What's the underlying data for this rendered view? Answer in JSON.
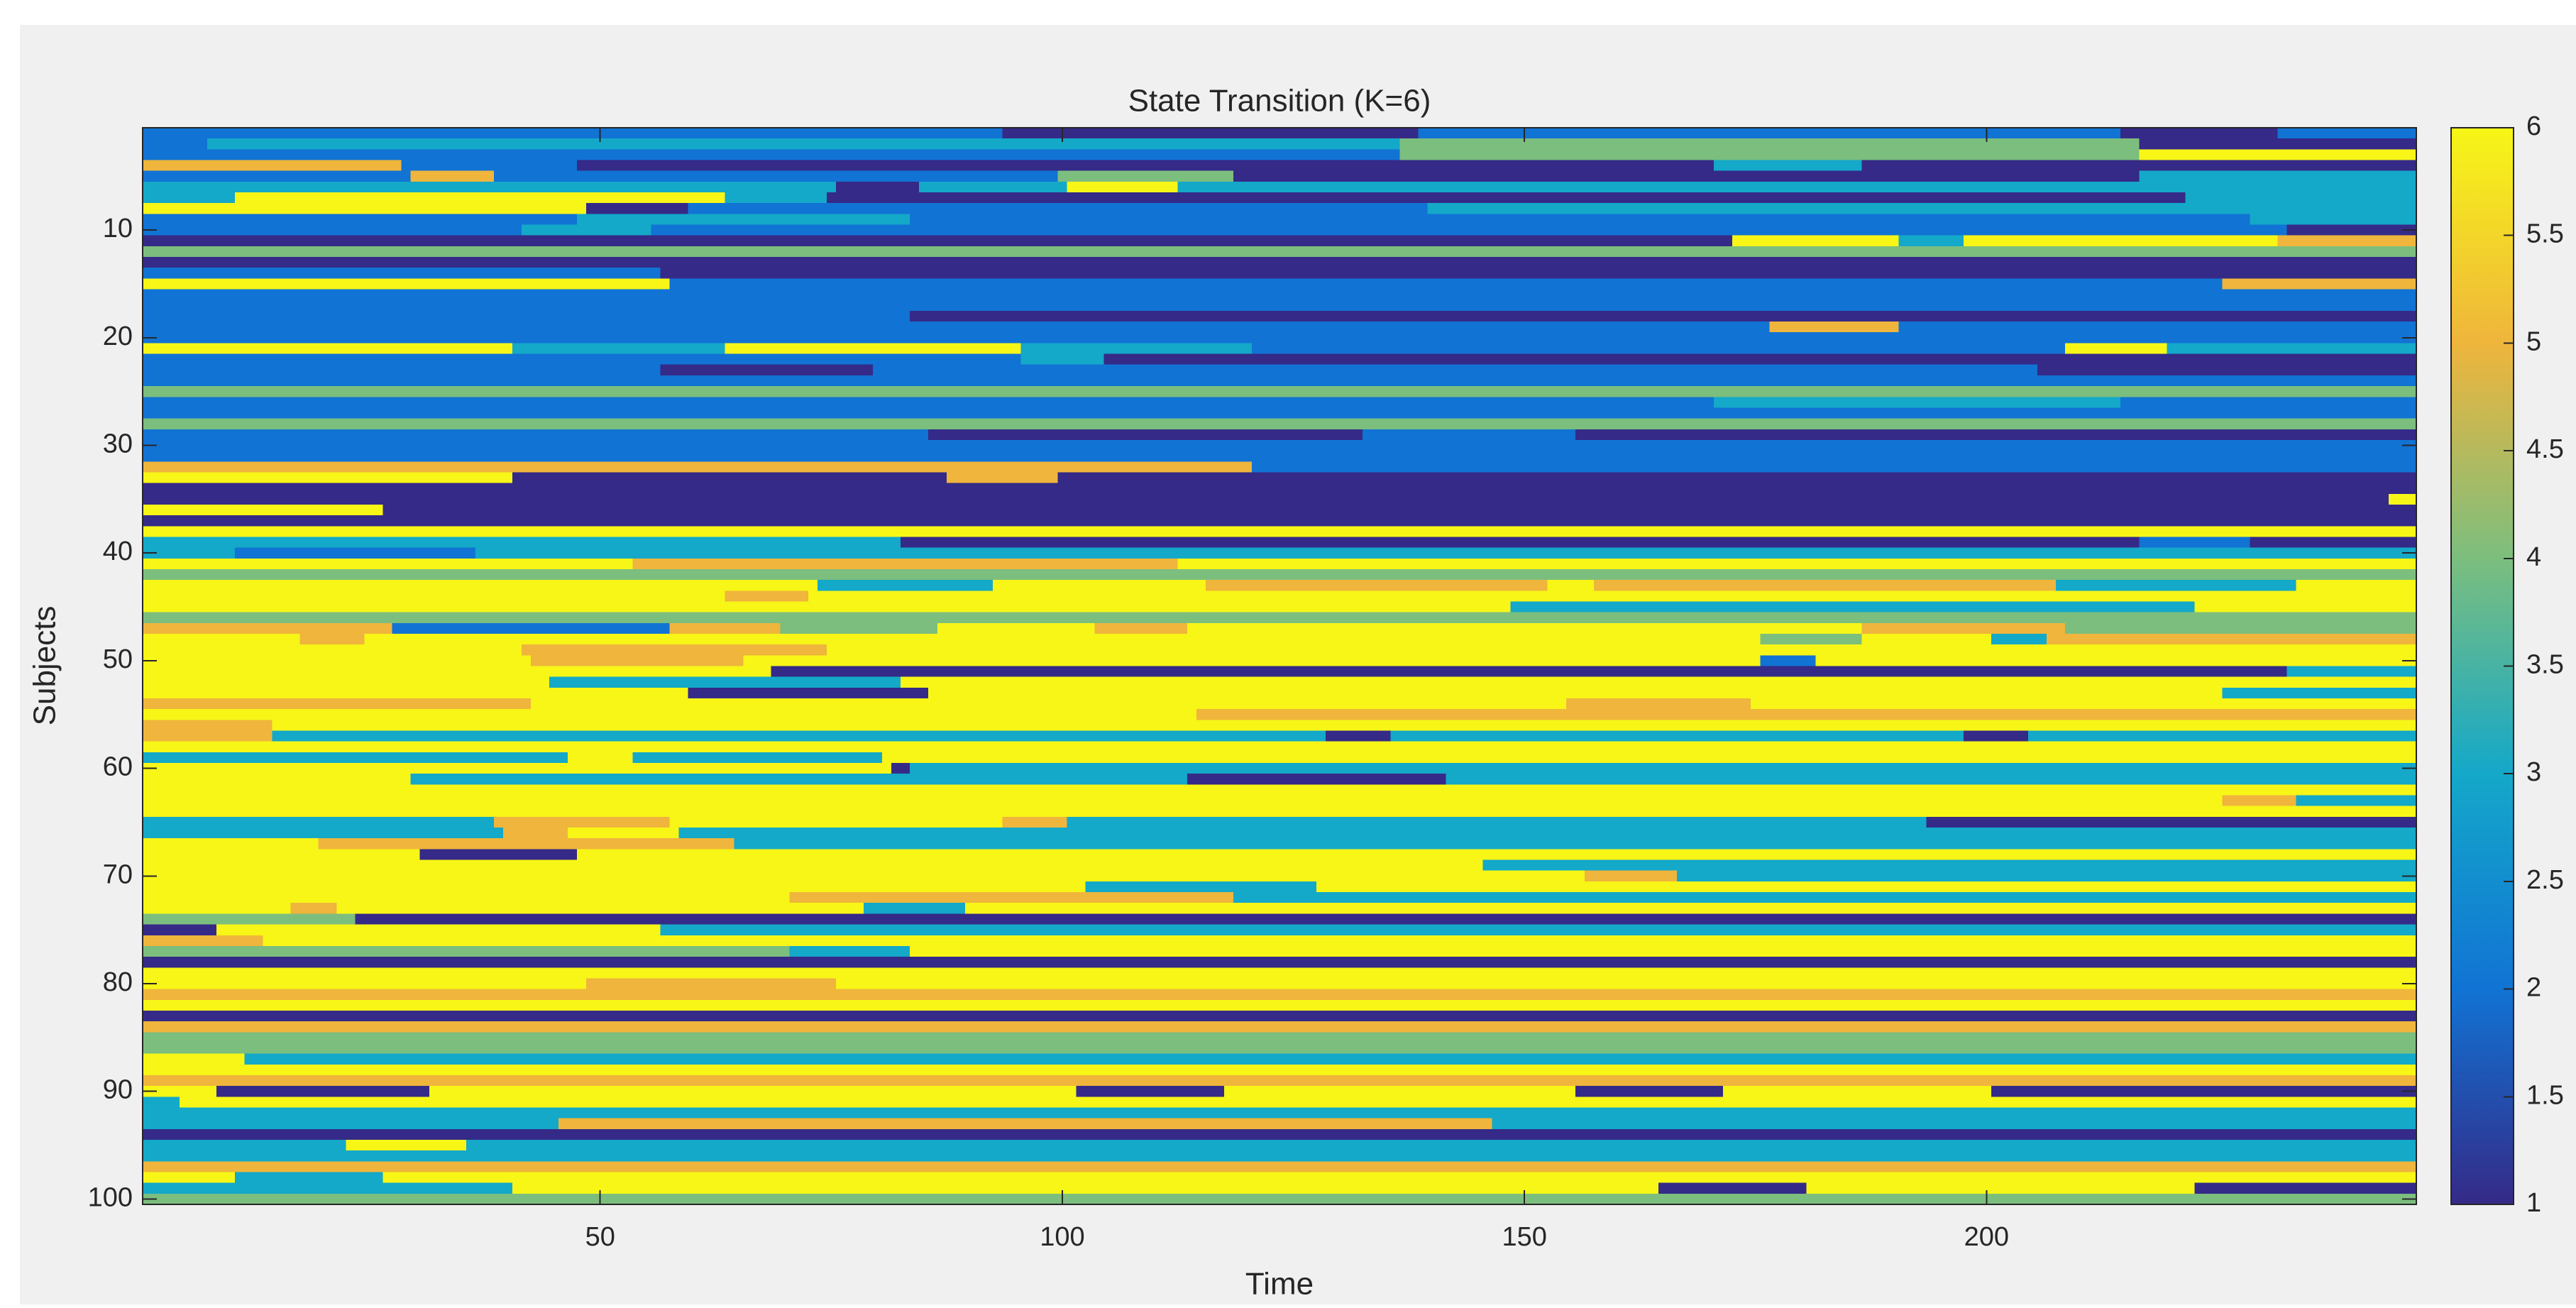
{
  "chart_data": {
    "type": "heatmap",
    "title": "State Transition (K=6)",
    "xlabel": "Time",
    "ylabel": "Subjects",
    "xlim": [
      0.5,
      246.5
    ],
    "ylim": [
      0.5,
      100.5
    ],
    "y_reversed": true,
    "xticks": [
      50,
      100,
      150,
      200
    ],
    "yticks": [
      10,
      20,
      30,
      40,
      50,
      60,
      70,
      80,
      90,
      100
    ],
    "clim": [
      1,
      6
    ],
    "cticks": [
      1,
      1.5,
      2,
      2.5,
      3,
      3.5,
      4,
      4.5,
      5,
      5.5,
      6
    ],
    "colormap": [
      "#352a87",
      "#1173d4",
      "#14a8c9",
      "#7cbe7e",
      "#efb53c",
      "#f7f617"
    ],
    "rows": [
      [
        [
          1,
          93,
          2
        ],
        [
          94,
          138,
          1
        ],
        [
          139,
          214,
          2
        ],
        [
          215,
          231,
          1
        ],
        [
          232,
          246,
          2
        ]
      ],
      [
        [
          1,
          7,
          2
        ],
        [
          8,
          136,
          3
        ],
        [
          137,
          216,
          4
        ],
        [
          217,
          246,
          1
        ]
      ],
      [
        [
          1,
          136,
          2
        ],
        [
          137,
          216,
          4
        ],
        [
          217,
          246,
          6
        ]
      ],
      [
        [
          1,
          28,
          5
        ],
        [
          29,
          47,
          2
        ],
        [
          48,
          170,
          1
        ],
        [
          171,
          186,
          3
        ],
        [
          187,
          246,
          1
        ]
      ],
      [
        [
          1,
          29,
          2
        ],
        [
          30,
          38,
          5
        ],
        [
          39,
          99,
          2
        ],
        [
          100,
          118,
          4
        ],
        [
          119,
          216,
          1
        ],
        [
          217,
          246,
          3
        ]
      ],
      [
        [
          1,
          75,
          3
        ],
        [
          76,
          84,
          1
        ],
        [
          85,
          100,
          3
        ],
        [
          101,
          112,
          6
        ],
        [
          113,
          246,
          3
        ]
      ],
      [
        [
          1,
          10,
          3
        ],
        [
          11,
          63,
          6
        ],
        [
          64,
          74,
          3
        ],
        [
          75,
          221,
          1
        ],
        [
          222,
          246,
          3
        ]
      ],
      [
        [
          1,
          48,
          6
        ],
        [
          49,
          59,
          1
        ],
        [
          60,
          139,
          2
        ],
        [
          140,
          246,
          3
        ]
      ],
      [
        [
          1,
          47,
          2
        ],
        [
          48,
          83,
          3
        ],
        [
          84,
          228,
          2
        ],
        [
          229,
          246,
          3
        ]
      ],
      [
        [
          1,
          41,
          2
        ],
        [
          42,
          55,
          3
        ],
        [
          56,
          232,
          2
        ],
        [
          233,
          246,
          1
        ]
      ],
      [
        [
          1,
          172,
          1
        ],
        [
          173,
          190,
          6
        ],
        [
          191,
          197,
          3
        ],
        [
          198,
          231,
          6
        ],
        [
          232,
          246,
          5
        ]
      ],
      [
        [
          1,
          246,
          4
        ]
      ],
      [
        [
          1,
          246,
          1
        ]
      ],
      [
        [
          1,
          56,
          2
        ],
        [
          57,
          246,
          1
        ]
      ],
      [
        [
          1,
          57,
          6
        ],
        [
          58,
          225,
          2
        ],
        [
          226,
          246,
          5
        ]
      ],
      [
        [
          1,
          246,
          2
        ]
      ],
      [
        [
          1,
          246,
          2
        ]
      ],
      [
        [
          1,
          83,
          2
        ],
        [
          84,
          246,
          1
        ]
      ],
      [
        [
          1,
          176,
          2
        ],
        [
          177,
          190,
          5
        ],
        [
          191,
          246,
          2
        ]
      ],
      [
        [
          1,
          246,
          2
        ]
      ],
      [
        [
          1,
          40,
          6
        ],
        [
          41,
          63,
          3
        ],
        [
          64,
          95,
          6
        ],
        [
          96,
          120,
          3
        ],
        [
          121,
          208,
          2
        ],
        [
          209,
          219,
          6
        ],
        [
          220,
          246,
          3
        ]
      ],
      [
        [
          1,
          95,
          2
        ],
        [
          96,
          104,
          3
        ],
        [
          105,
          246,
          1
        ]
      ],
      [
        [
          1,
          56,
          2
        ],
        [
          57,
          79,
          1
        ],
        [
          80,
          205,
          2
        ],
        [
          206,
          246,
          1
        ]
      ],
      [
        [
          1,
          246,
          2
        ]
      ],
      [
        [
          1,
          246,
          4
        ]
      ],
      [
        [
          1,
          170,
          2
        ],
        [
          171,
          214,
          3
        ],
        [
          215,
          246,
          2
        ]
      ],
      [
        [
          1,
          246,
          2
        ]
      ],
      [
        [
          1,
          246,
          4
        ]
      ],
      [
        [
          1,
          85,
          2
        ],
        [
          86,
          132,
          1
        ],
        [
          133,
          155,
          2
        ],
        [
          156,
          246,
          1
        ]
      ],
      [
        [
          1,
          246,
          2
        ]
      ],
      [
        [
          1,
          246,
          2
        ]
      ],
      [
        [
          1,
          120,
          5
        ],
        [
          121,
          246,
          2
        ]
      ],
      [
        [
          1,
          40,
          6
        ],
        [
          41,
          87,
          1
        ],
        [
          88,
          99,
          5
        ],
        [
          100,
          246,
          1
        ]
      ],
      [
        [
          1,
          246,
          1
        ]
      ],
      [
        [
          1,
          243,
          1
        ],
        [
          244,
          246,
          6
        ]
      ],
      [
        [
          1,
          26,
          6
        ],
        [
          27,
          246,
          1
        ]
      ],
      [
        [
          1,
          246,
          1
        ]
      ],
      [
        [
          1,
          246,
          6
        ]
      ],
      [
        [
          1,
          82,
          3
        ],
        [
          83,
          216,
          1
        ],
        [
          217,
          228,
          2
        ],
        [
          229,
          246,
          1
        ]
      ],
      [
        [
          1,
          10,
          3
        ],
        [
          11,
          36,
          2
        ],
        [
          37,
          246,
          3
        ]
      ],
      [
        [
          1,
          53,
          6
        ],
        [
          54,
          112,
          5
        ],
        [
          113,
          246,
          6
        ]
      ],
      [
        [
          1,
          246,
          4
        ]
      ],
      [
        [
          1,
          73,
          6
        ],
        [
          74,
          92,
          3
        ],
        [
          93,
          115,
          6
        ],
        [
          116,
          152,
          5
        ],
        [
          153,
          157,
          6
        ],
        [
          158,
          207,
          5
        ],
        [
          208,
          233,
          3
        ],
        [
          234,
          246,
          6
        ]
      ],
      [
        [
          1,
          63,
          6
        ],
        [
          64,
          72,
          5
        ],
        [
          73,
          246,
          6
        ]
      ],
      [
        [
          1,
          148,
          6
        ],
        [
          149,
          222,
          3
        ],
        [
          223,
          246,
          6
        ]
      ],
      [
        [
          1,
          246,
          4
        ]
      ],
      [
        [
          1,
          27,
          5
        ],
        [
          28,
          57,
          2
        ],
        [
          58,
          69,
          5
        ],
        [
          70,
          86,
          4
        ],
        [
          87,
          103,
          6
        ],
        [
          104,
          113,
          5
        ],
        [
          114,
          186,
          6
        ],
        [
          187,
          208,
          5
        ],
        [
          209,
          246,
          4
        ]
      ],
      [
        [
          1,
          17,
          6
        ],
        [
          18,
          24,
          5
        ],
        [
          25,
          175,
          6
        ],
        [
          176,
          186,
          4
        ],
        [
          187,
          200,
          6
        ],
        [
          201,
          206,
          3
        ],
        [
          207,
          246,
          5
        ]
      ],
      [
        [
          1,
          41,
          6
        ],
        [
          42,
          74,
          5
        ],
        [
          75,
          246,
          6
        ]
      ],
      [
        [
          1,
          42,
          6
        ],
        [
          43,
          65,
          5
        ],
        [
          66,
          175,
          6
        ],
        [
          176,
          181,
          2
        ],
        [
          182,
          246,
          6
        ]
      ],
      [
        [
          1,
          68,
          6
        ],
        [
          69,
          232,
          1
        ],
        [
          233,
          246,
          3
        ]
      ],
      [
        [
          1,
          44,
          6
        ],
        [
          45,
          82,
          3
        ],
        [
          83,
          246,
          6
        ]
      ],
      [
        [
          1,
          59,
          6
        ],
        [
          60,
          85,
          1
        ],
        [
          86,
          225,
          6
        ],
        [
          226,
          246,
          3
        ]
      ],
      [
        [
          1,
          42,
          5
        ],
        [
          43,
          154,
          6
        ],
        [
          155,
          174,
          5
        ],
        [
          175,
          246,
          6
        ]
      ],
      [
        [
          1,
          114,
          6
        ],
        [
          115,
          118,
          5
        ],
        [
          119,
          246,
          5
        ]
      ],
      [
        [
          1,
          14,
          5
        ],
        [
          15,
          246,
          6
        ]
      ],
      [
        [
          1,
          14,
          5
        ],
        [
          15,
          128,
          3
        ],
        [
          129,
          135,
          1
        ],
        [
          136,
          197,
          3
        ],
        [
          198,
          204,
          1
        ],
        [
          205,
          246,
          3
        ]
      ],
      [
        [
          1,
          246,
          6
        ]
      ],
      [
        [
          1,
          46,
          3
        ],
        [
          47,
          53,
          6
        ],
        [
          54,
          80,
          3
        ],
        [
          81,
          246,
          6
        ]
      ],
      [
        [
          1,
          81,
          6
        ],
        [
          82,
          83,
          1
        ],
        [
          84,
          246,
          3
        ]
      ],
      [
        [
          1,
          29,
          6
        ],
        [
          30,
          113,
          3
        ],
        [
          114,
          141,
          1
        ],
        [
          142,
          246,
          3
        ]
      ],
      [
        [
          1,
          246,
          6
        ]
      ],
      [
        [
          1,
          225,
          6
        ],
        [
          226,
          233,
          5
        ],
        [
          234,
          246,
          3
        ]
      ],
      [
        [
          1,
          246,
          6
        ]
      ],
      [
        [
          1,
          38,
          3
        ],
        [
          39,
          57,
          5
        ],
        [
          58,
          93,
          6
        ],
        [
          94,
          100,
          5
        ],
        [
          101,
          193,
          3
        ],
        [
          194,
          246,
          1
        ]
      ],
      [
        [
          1,
          39,
          3
        ],
        [
          40,
          46,
          5
        ],
        [
          47,
          58,
          6
        ],
        [
          59,
          246,
          3
        ]
      ],
      [
        [
          1,
          19,
          6
        ],
        [
          20,
          64,
          5
        ],
        [
          65,
          246,
          3
        ]
      ],
      [
        [
          1,
          30,
          6
        ],
        [
          31,
          47,
          1
        ],
        [
          48,
          246,
          6
        ]
      ],
      [
        [
          1,
          145,
          6
        ],
        [
          146,
          246,
          3
        ]
      ],
      [
        [
          1,
          156,
          6
        ],
        [
          157,
          166,
          5
        ],
        [
          167,
          246,
          3
        ]
      ],
      [
        [
          1,
          102,
          6
        ],
        [
          103,
          127,
          3
        ],
        [
          128,
          246,
          6
        ]
      ],
      [
        [
          1,
          70,
          6
        ],
        [
          71,
          118,
          5
        ],
        [
          119,
          246,
          3
        ]
      ],
      [
        [
          1,
          16,
          6
        ],
        [
          17,
          21,
          5
        ],
        [
          22,
          78,
          6
        ],
        [
          79,
          89,
          3
        ],
        [
          90,
          246,
          6
        ]
      ],
      [
        [
          1,
          23,
          4
        ],
        [
          24,
          246,
          1
        ]
      ],
      [
        [
          1,
          8,
          1
        ],
        [
          9,
          56,
          6
        ],
        [
          57,
          246,
          3
        ]
      ],
      [
        [
          1,
          13,
          5
        ],
        [
          14,
          246,
          6
        ]
      ],
      [
        [
          1,
          70,
          4
        ],
        [
          71,
          83,
          3
        ],
        [
          84,
          246,
          6
        ]
      ],
      [
        [
          1,
          246,
          1
        ]
      ],
      [
        [
          1,
          246,
          6
        ]
      ],
      [
        [
          1,
          48,
          6
        ],
        [
          49,
          75,
          5
        ],
        [
          76,
          246,
          6
        ]
      ],
      [
        [
          1,
          246,
          5
        ]
      ],
      [
        [
          1,
          246,
          6
        ]
      ],
      [
        [
          1,
          246,
          1
        ]
      ],
      [
        [
          1,
          246,
          5
        ]
      ],
      [
        [
          1,
          246,
          4
        ]
      ],
      [
        [
          1,
          246,
          4
        ]
      ],
      [
        [
          1,
          11,
          6
        ],
        [
          12,
          246,
          3
        ]
      ],
      [
        [
          1,
          246,
          6
        ]
      ],
      [
        [
          1,
          246,
          5
        ]
      ],
      [
        [
          1,
          8,
          6
        ],
        [
          9,
          31,
          1
        ],
        [
          32,
          101,
          6
        ],
        [
          102,
          117,
          1
        ],
        [
          118,
          155,
          6
        ],
        [
          156,
          171,
          1
        ],
        [
          172,
          200,
          6
        ],
        [
          201,
          246,
          1
        ]
      ],
      [
        [
          1,
          4,
          3
        ],
        [
          5,
          34,
          6
        ],
        [
          35,
          246,
          6
        ]
      ],
      [
        [
          1,
          246,
          3
        ]
      ],
      [
        [
          1,
          45,
          3
        ],
        [
          46,
          146,
          5
        ],
        [
          147,
          246,
          3
        ]
      ],
      [
        [
          1,
          246,
          1
        ]
      ],
      [
        [
          1,
          22,
          3
        ],
        [
          23,
          35,
          6
        ],
        [
          36,
          246,
          3
        ]
      ],
      [
        [
          1,
          246,
          3
        ]
      ],
      [
        [
          1,
          246,
          5
        ]
      ],
      [
        [
          1,
          10,
          6
        ],
        [
          11,
          26,
          3
        ],
        [
          27,
          246,
          6
        ]
      ],
      [
        [
          1,
          40,
          3
        ],
        [
          41,
          164,
          6
        ],
        [
          165,
          180,
          1
        ],
        [
          181,
          222,
          6
        ],
        [
          223,
          246,
          1
        ]
      ],
      [
        [
          1,
          246,
          4
        ]
      ]
    ]
  }
}
